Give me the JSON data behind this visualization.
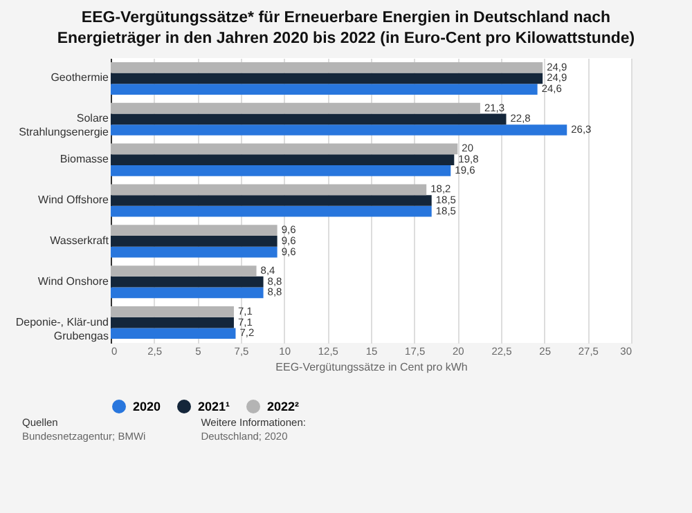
{
  "chart_data": {
    "type": "bar",
    "orientation": "horizontal",
    "title": "EEG-Vergütungssätze* für Erneuerbare Energien in Deutschland nach Energieträger in den Jahren 2020 bis 2022 (in Euro-Cent pro Kilowattstunde)",
    "xlabel": "EEG-Vergütungssätze in Cent pro kWh",
    "categories": [
      "Geothermie",
      "Solare Strahlungsenergie",
      "Biomasse",
      "Wind Offshore",
      "Wasserkraft",
      "Wind Onshore",
      "Deponie-, Klär-und Grubengas"
    ],
    "series": [
      {
        "name": "2020",
        "color": "#2876dd",
        "values": [
          24.6,
          26.3,
          19.6,
          18.5,
          9.6,
          8.8,
          7.2
        ],
        "value_labels": [
          "24,6",
          "26,3",
          "19,6",
          "18,5",
          "9,6",
          "8,8",
          "7,2"
        ]
      },
      {
        "name": "2021¹",
        "color": "#14263a",
        "values": [
          24.9,
          22.8,
          19.8,
          18.5,
          9.6,
          8.8,
          7.1
        ],
        "value_labels": [
          "24,9",
          "22,8",
          "19,8",
          "18,5",
          "9,6",
          "8,8",
          "7,1"
        ]
      },
      {
        "name": "2022²",
        "color": "#b4b4b4",
        "values": [
          24.9,
          21.3,
          20,
          18.2,
          9.6,
          8.4,
          7.1
        ],
        "value_labels": [
          "24,9",
          "21,3",
          "20",
          "18,2",
          "9,6",
          "8,4",
          "7,1"
        ]
      }
    ],
    "xlim": [
      0,
      30
    ],
    "xticks": [
      0,
      {
        "value": 2.5,
        "label": "2,5"
      },
      5,
      {
        "value": 7.5,
        "label": "7,5"
      },
      10,
      {
        "value": 12.5,
        "label": "12,5"
      },
      15,
      {
        "value": 17.5,
        "label": "17,5"
      },
      20,
      {
        "value": 22.5,
        "label": "22,5"
      },
      25,
      {
        "value": 27.5,
        "label": "27,5"
      },
      30
    ],
    "grid": "x",
    "legend": "bottom",
    "annotations": [
      "Quellen",
      "Bundesnetzagentur; BMWi",
      "Weitere Informationen:",
      "Deutschland; 2020"
    ]
  }
}
